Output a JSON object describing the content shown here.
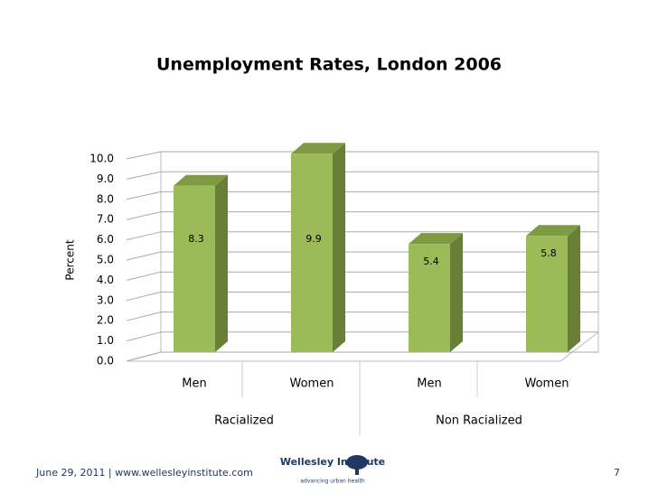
{
  "chart_data": {
    "type": "bar3d",
    "title": "Unemployment Rates, London 2006",
    "y_label": "Percent",
    "categories": [
      "Men",
      "Women",
      "Men",
      "Women"
    ],
    "group_labels": [
      "Racialized",
      "Non Racialized"
    ],
    "values": [
      8.3,
      9.9,
      5.4,
      5.8
    ],
    "color": "#9bbb59",
    "ylim": [
      0,
      10
    ],
    "yticks": [
      {
        "value": 0,
        "label": "0.0"
      },
      {
        "value": 1,
        "label": "1.0"
      },
      {
        "value": 2,
        "label": "2.0"
      },
      {
        "value": 3,
        "label": "3.0"
      },
      {
        "value": 4,
        "label": "4.0"
      },
      {
        "value": 5,
        "label": "5.0"
      },
      {
        "value": 6,
        "label": "6.0"
      },
      {
        "value": 7,
        "label": "7.0"
      },
      {
        "value": 8,
        "label": "8.0"
      },
      {
        "value": 9,
        "label": "9.0"
      },
      {
        "value": 10,
        "label": "10.0"
      }
    ],
    "grid": true
  },
  "footer": {
    "text": "June 29, 2011 | www.wellesleyinstitute.com",
    "logo_name": "Wellesley Institute",
    "logo_tagline": "advancing urban health",
    "page": "7"
  }
}
